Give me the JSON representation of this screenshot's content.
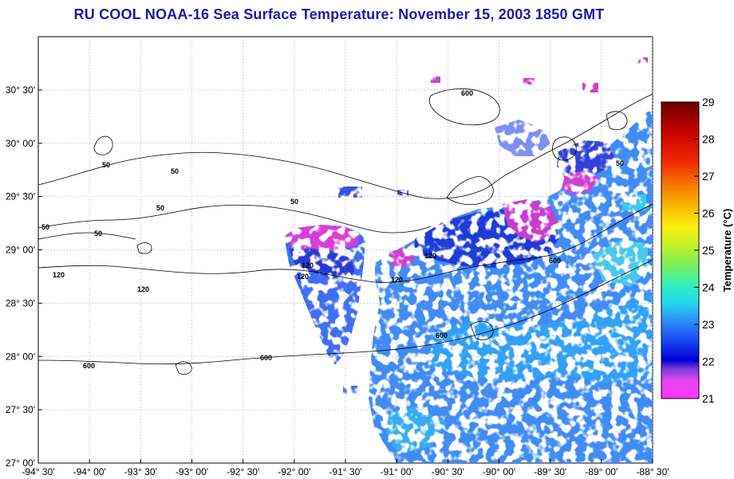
{
  "title": "RU COOL  NOAA-16  Sea Surface Temperature:  November 15, 2003 1850 GMT",
  "chart_data": {
    "type": "heatmap",
    "lon_range": [
      -94.5,
      -88.5
    ],
    "lat_range": [
      27.0,
      31.0
    ],
    "grid": true,
    "x_tick_labels": [
      "-94° 30'",
      "-94° 00'",
      "-93° 30'",
      "-93° 00'",
      "-92° 30'",
      "-92° 00'",
      "-91° 30'",
      "-91° 00'",
      "-90° 30'",
      "-90° 00'",
      "-89° 30'",
      "-89° 00'",
      "-88° 30'"
    ],
    "y_tick_labels": [
      "27° 00'",
      "27° 30'",
      "28° 00'",
      "28° 30'",
      "29° 00'",
      "29° 30'",
      "30° 00'",
      "30° 30'"
    ],
    "colorbar": {
      "label": "Temperature (°C)",
      "min": 21,
      "max": 29,
      "ticks": [
        "21",
        "22",
        "23",
        "24",
        "25",
        "26",
        "27",
        "28",
        "29"
      ]
    },
    "contour_labels": [
      "50",
      "50",
      "50",
      "50",
      "50",
      "50",
      "120",
      "120",
      "120",
      "120",
      "120",
      "600",
      "600",
      "600",
      "600",
      "600",
      "50",
      "120"
    ]
  },
  "colors": {
    "title": "#1a1aa8",
    "land_background": "#ffffff",
    "contour": "#000000",
    "grid": "#9a9a9a"
  }
}
